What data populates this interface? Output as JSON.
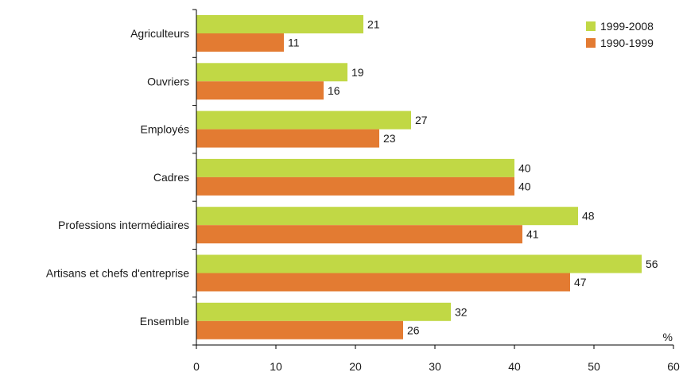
{
  "chart_data": {
    "type": "bar",
    "orientation": "horizontal",
    "categories": [
      "Agriculteurs",
      "Ouvriers",
      "Employés",
      "Cadres",
      "Professions intermédiaires",
      "Artisans et chefs d'entreprise",
      "Ensemble"
    ],
    "series": [
      {
        "name": "1999-2008",
        "color": "#c1d845",
        "values": [
          21,
          19,
          27,
          40,
          48,
          56,
          32
        ]
      },
      {
        "name": "1990-1999",
        "color": "#e37b32",
        "values": [
          11,
          16,
          23,
          40,
          41,
          47,
          26
        ]
      }
    ],
    "xlim": [
      0,
      60
    ],
    "xticks": [
      "0",
      "10",
      "20",
      "30",
      "40",
      "50",
      "60"
    ],
    "unit": "%",
    "legend_position": "top-right",
    "grid": false
  }
}
